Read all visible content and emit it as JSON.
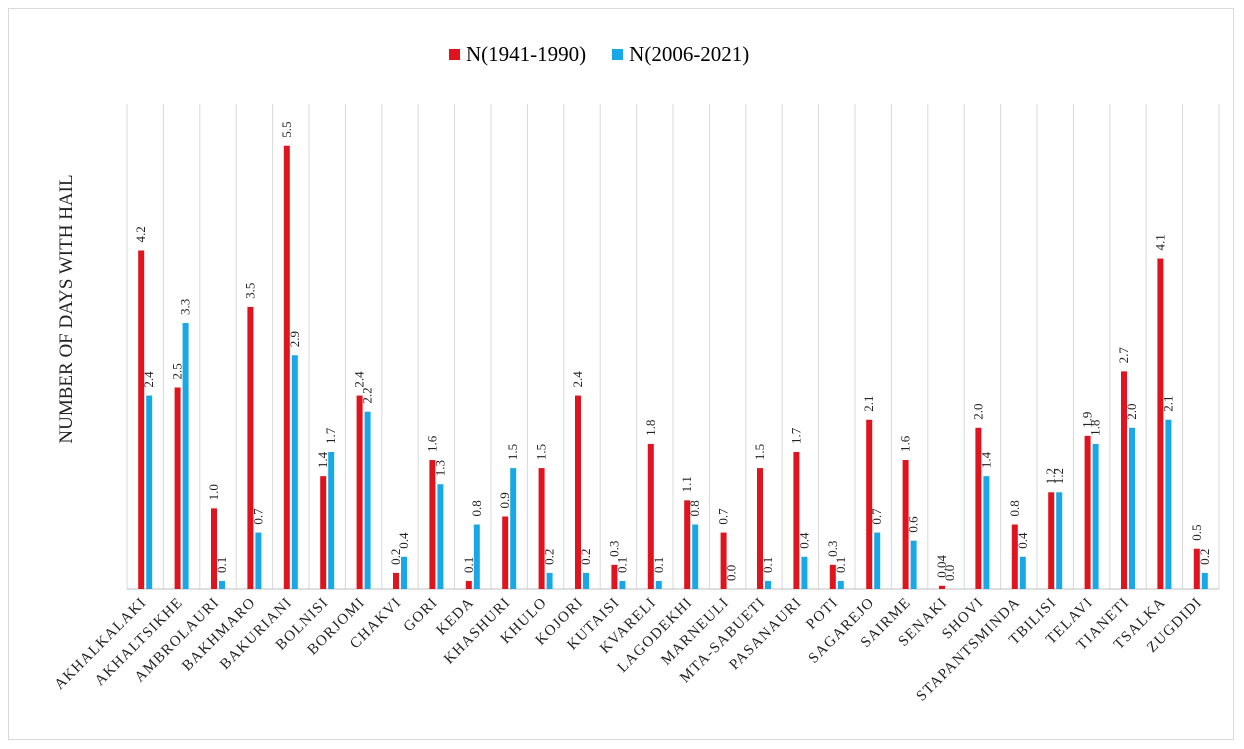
{
  "chart_data": {
    "type": "bar",
    "title": "",
    "xlabel": "",
    "ylabel": "NUMBER OF DAYS WITH HAIL",
    "ylim": [
      0,
      6
    ],
    "grid": "vertical",
    "legend_position": "top",
    "categories": [
      "AKHALKALAKI",
      "AKHALTSIKHE",
      "AMBROLAURI",
      "BAKHMARO",
      "BAKURIANI",
      "BOLNISI",
      "BORJOMI",
      "CHAKVI",
      "GORI",
      "KEDA",
      "KHASHURI",
      "KHULO",
      "KOJORI",
      "KUTAISI",
      "KVARELI",
      "LAGODEKHI",
      "MARNEULI",
      "MTA-SABUETI",
      "PASANAURI",
      "POTI",
      "SAGAREJO",
      "SAIRME",
      "SENAKI",
      "SHOVI",
      "STAPANTSMINDA",
      "TBILISI",
      "TELAVI",
      "TIANETI",
      "TSALKA",
      "ZUGDIDI"
    ],
    "series": [
      {
        "name": "N(1941-1990)",
        "color": "#e0141e",
        "values": [
          4.2,
          2.5,
          1.0,
          3.5,
          5.5,
          1.4,
          2.4,
          0.2,
          1.6,
          0.1,
          0.9,
          1.5,
          2.4,
          0.3,
          1.8,
          1.1,
          0.7,
          1.5,
          1.7,
          0.3,
          2.1,
          1.6,
          0.04,
          2.0,
          0.8,
          1.2,
          1.9,
          2.7,
          4.1,
          0.5
        ],
        "labels": [
          "4.2",
          "2.5",
          "1.0",
          "3.5",
          "5.5",
          "1.4",
          "2.4",
          "0.2",
          "1.6",
          "0.1",
          "0.9",
          "1.5",
          "2.4",
          "0.3",
          "1.8",
          "1.1",
          "0.7",
          "1.5",
          "1.7",
          "0.3",
          "2.1",
          "1.6",
          "0.04",
          "2.0",
          "0.8",
          "1.2",
          "1.9",
          "2.7",
          "4.1",
          "0.5"
        ]
      },
      {
        "name": "N(2006-2021)",
        "color": "#19a8e6",
        "values": [
          2.4,
          3.3,
          0.1,
          0.7,
          2.9,
          1.7,
          2.2,
          0.4,
          1.3,
          0.8,
          1.5,
          0.2,
          0.2,
          0.1,
          0.1,
          0.8,
          0.0,
          0.1,
          0.4,
          0.1,
          0.7,
          0.6,
          0.0,
          1.4,
          0.4,
          1.2,
          1.8,
          2.0,
          2.1,
          0.2
        ],
        "labels": [
          "2.4",
          "3.3",
          "0.1",
          "0.7",
          "2.9",
          "1.7",
          "2.2",
          "0.4",
          "1.3",
          "0.8",
          "1.5",
          "0.2",
          "0.2",
          "0.1",
          "0.1",
          "0.8",
          "0.0",
          "0.1",
          "0.4",
          "0.1",
          "0.7",
          "0.6",
          "0.0",
          "1.4",
          "0.4",
          "1.2",
          "1.8",
          "2.0",
          "2.1",
          "0.2"
        ]
      }
    ]
  }
}
